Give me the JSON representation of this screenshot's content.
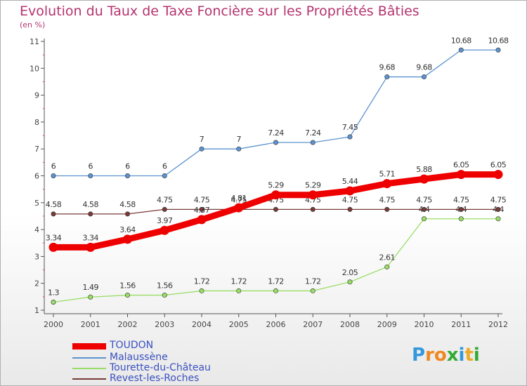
{
  "chart_data": {
    "type": "line",
    "title": "Evolution du Taux de Taxe Foncière sur les Propriétés Bâties",
    "subtitle": "(en %)",
    "x": [
      "2000",
      "2001",
      "2002",
      "2003",
      "2004",
      "2005",
      "2006",
      "2007",
      "2008",
      "2009",
      "2010",
      "2011",
      "2012"
    ],
    "ylim": [
      1,
      11
    ],
    "yticks": [
      "1",
      "2",
      "3",
      "4",
      "5",
      "6",
      "7",
      "8",
      "9",
      "10",
      "11"
    ],
    "grid": false,
    "legend_position": "bottom-left",
    "series": [
      {
        "name": "TOUDON",
        "color": "#ee0000",
        "values": [
          3.34,
          3.34,
          3.64,
          3.97,
          4.37,
          4.81,
          5.29,
          5.29,
          5.44,
          5.71,
          5.88,
          6.05,
          6.05
        ],
        "labels": [
          "3.34",
          "3.34",
          "3.64",
          "3.97",
          "4.37",
          "4.81",
          "5.29",
          "5.29",
          "5.44",
          "5.71",
          "5.88",
          "6.05",
          "6.05"
        ]
      },
      {
        "name": "Malaussène",
        "color": "#5d93cf",
        "values": [
          6,
          6,
          6,
          6,
          7,
          7,
          7.24,
          7.24,
          7.45,
          9.68,
          9.68,
          10.68,
          10.68
        ],
        "labels": [
          "6",
          "6",
          "6",
          "6",
          "7",
          "7",
          "7.24",
          "7.24",
          "7.45",
          "9.68",
          "9.68",
          "10.68",
          "10.68"
        ]
      },
      {
        "name": "Tourette-du-Château",
        "color": "#99dd66",
        "values": [
          1.3,
          1.49,
          1.56,
          1.56,
          1.72,
          1.72,
          1.72,
          1.72,
          2.05,
          2.61,
          4.4,
          4.4,
          4.4
        ],
        "labels": [
          "1.3",
          "1.49",
          "1.56",
          "1.56",
          "1.72",
          "1.72",
          "1.72",
          "1.72",
          "2.05",
          "2.61",
          "4.4",
          "4.4",
          "4.4"
        ]
      },
      {
        "name": "Revest-les-Roches",
        "color": "#7a3a3a",
        "values": [
          4.58,
          4.58,
          4.58,
          4.75,
          4.75,
          4.75,
          4.75,
          4.75,
          4.75,
          4.75,
          4.75,
          4.75,
          4.75
        ],
        "labels": [
          "4.58",
          "4.58",
          "4.58",
          "4.75",
          "4.75",
          "4.75",
          "4.75",
          "4.75",
          "4.75",
          "4.75",
          "4.75",
          "4.75",
          "4.75"
        ]
      }
    ]
  },
  "brand": {
    "parts": [
      "P",
      "r",
      "o",
      "x",
      "i",
      "t",
      "i"
    ],
    "colors": [
      "#3399dd",
      "#ee8822",
      "#ee8822",
      "#33aa33",
      "#3399dd",
      "#eeaa22",
      "#33aa33"
    ]
  }
}
